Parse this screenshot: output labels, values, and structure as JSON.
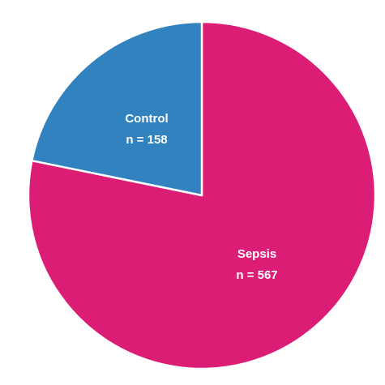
{
  "chart_data": {
    "type": "pie",
    "slices": [
      {
        "label": "Sepsis",
        "count_text": "n = 567",
        "value": 567,
        "color": "#dc1d75"
      },
      {
        "label": "Control",
        "count_text": "n = 158",
        "value": 158,
        "color": "#3182bf"
      }
    ],
    "start": "12 o'clock",
    "direction": "clockwise",
    "edge_color": "#ffffff"
  }
}
